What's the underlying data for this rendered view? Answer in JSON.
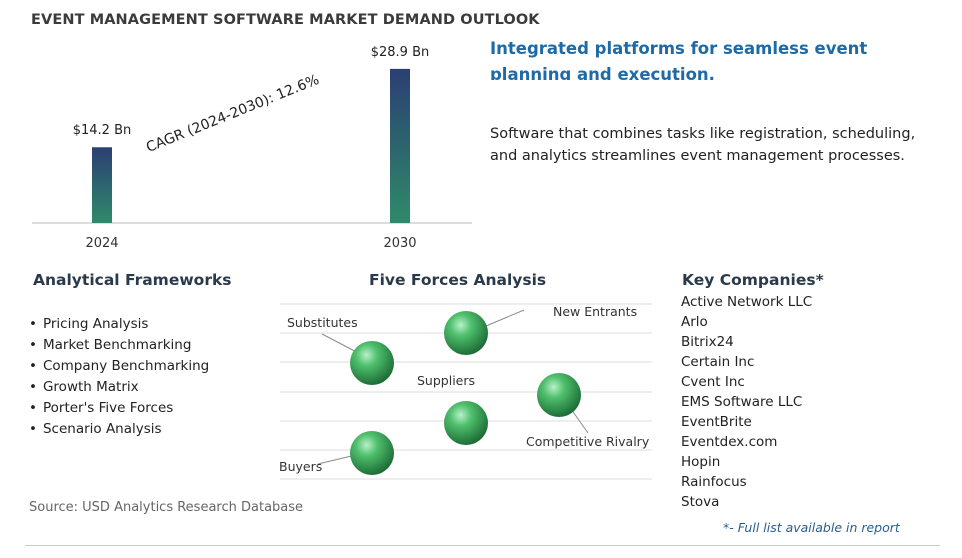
{
  "title": "EVENT MANAGEMENT SOFTWARE MARKET DEMAND OUTLOOK",
  "headline": "Integrated platforms for seamless event planning and execution.",
  "description": "Software that combines tasks like registration, scheduling, and analytics streamlines event management processes.",
  "chart_data": {
    "type": "bar",
    "categories": [
      "2024",
      "2030"
    ],
    "values": [
      14.2,
      28.9
    ],
    "value_labels": [
      "$14.2 Bn",
      "$28.9 Bn"
    ],
    "ylim": [
      0,
      30
    ],
    "annotation": "CAGR (2024-2030):  12.6%",
    "colors": {
      "bar_top": "#2b3f73",
      "bar_bottom": "#2f8a6a"
    }
  },
  "frameworks": {
    "heading": "Analytical Frameworks",
    "items": [
      "Pricing Analysis",
      "Market Benchmarking",
      "Company Benchmarking",
      "Growth Matrix",
      "Porter's Five Forces",
      "Scenario Analysis"
    ]
  },
  "five_forces": {
    "heading": "Five Forces Analysis",
    "labels": {
      "substitutes": "Substitutes",
      "new_entrants": "New Entrants",
      "suppliers": "Suppliers",
      "competitive_rivalry": "Competitive Rivalry",
      "buyers": "Buyers"
    }
  },
  "companies": {
    "heading": "Key Companies*",
    "items": [
      "Active Network LLC",
      "Arlo",
      "Bitrix24",
      "Certain Inc",
      "Cvent Inc",
      "EMS Software LLC",
      "EventBrite",
      "Eventdex.com",
      "Hopin",
      "Rainfocus",
      "Stova"
    ],
    "note": "*- Full list available in report"
  },
  "source": "Source: USD Analytics Research Database"
}
